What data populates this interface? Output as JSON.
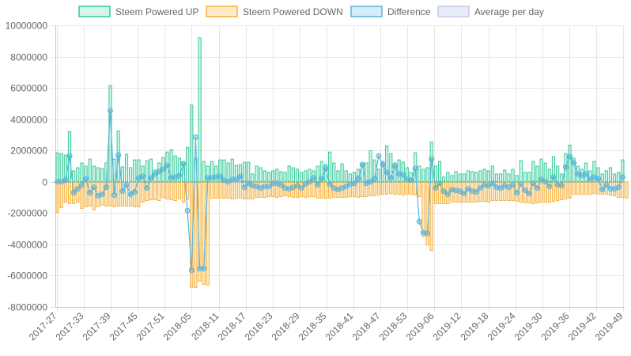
{
  "chart_data": {
    "type": "bar",
    "title": "",
    "xlabel": "",
    "ylabel": "",
    "ylim": [
      -8000000,
      10000000
    ],
    "y_ticks": [
      10000000,
      8000000,
      6000000,
      4000000,
      2000000,
      0,
      -2000000,
      -4000000,
      -6000000,
      -8000000
    ],
    "y_tick_labels": [
      "10000000",
      "8000000",
      "6000000",
      "4000000",
      "2000000",
      "0",
      "-2000000",
      "-4000000",
      "-6000000",
      "-8000000"
    ],
    "x_tick_labels": [
      "2017-27",
      "2017-33",
      "2017-39",
      "2017-45",
      "2017-51",
      "2018-05",
      "2018-11",
      "2018-17",
      "2018-23",
      "2018-29",
      "2018-35",
      "2018-41",
      "2018-47",
      "2018-53",
      "2019-06",
      "2019-12",
      "2019-18",
      "2019-24",
      "2019-30",
      "2019-36",
      "2019-42",
      "2019-49"
    ],
    "grid": true,
    "legend_position": "top",
    "legend": [
      {
        "name": "Steem Powered UP",
        "color": "#4bd4a0"
      },
      {
        "name": "Steem Powered DOWN",
        "color": "#ffc45c"
      },
      {
        "name": "Difference",
        "color": "#5ab4dc"
      },
      {
        "name": "Average per day",
        "color": "#cdd6f2"
      }
    ],
    "colors": {
      "up_fill": "rgba(75,220,170,0.25)",
      "up_stroke": "#38c99b",
      "down_fill": "rgba(255,196,92,0.35)",
      "down_stroke": "#f5b03e",
      "diff_line": "#5ab4dc",
      "diff_point": "rgba(90,180,220,0.45)",
      "avg_fill": "#e8ebf8",
      "avg_stroke": "#c4cbeb"
    },
    "series": [
      {
        "name": "Steem Powered UP",
        "values": [
          1850000,
          1800000,
          1700000,
          3200000,
          700000,
          900000,
          1200000,
          1000000,
          1450000,
          1000000,
          900000,
          850000,
          1200000,
          6150000,
          1450000,
          3250000,
          950000,
          1750000,
          900000,
          1400000,
          1400000,
          1000000,
          1350000,
          1450000,
          750000,
          1200000,
          1550000,
          1900000,
          2050000,
          1650000,
          1500000,
          1300000,
          2200000,
          4900000,
          1500000,
          9200000,
          1300000,
          1000000,
          1300000,
          1000000,
          1400000,
          1400000,
          1200000,
          1450000,
          1050000,
          1100000,
          1250000,
          1250000,
          500000,
          1000000,
          900000,
          700000,
          600000,
          700000,
          800000,
          650000,
          600000,
          1000000,
          900000,
          800000,
          600000,
          700000,
          800000,
          700000,
          1000000,
          1300000,
          1100000,
          1900000,
          1200000,
          700000,
          1150000,
          700000,
          500000,
          600000,
          800000,
          1150000,
          1200000,
          2000000,
          1400000,
          800000,
          1300000,
          2300000,
          1800000,
          1200000,
          1400000,
          1250000,
          900000,
          600000,
          1850000,
          1000000,
          800000,
          900000,
          2550000,
          1000000,
          1300000,
          300000,
          600000,
          400000,
          650000,
          500000,
          500000,
          700000,
          650000,
          600000,
          700000,
          800000,
          700000,
          1000000,
          500000,
          500000,
          750000,
          500000,
          800000,
          400000,
          1350000,
          600000,
          600000,
          1300000,
          1000000,
          1450000,
          1200000,
          800000,
          1600000,
          1000000,
          500000,
          1800000,
          2350000,
          1500000,
          1000000,
          800000,
          1200000,
          700000,
          1300000,
          900000,
          500000,
          700000,
          900000,
          500000,
          600000,
          1400000
        ]
      },
      {
        "name": "Steem Powered DOWN",
        "values": [
          -1950000,
          -1650000,
          -1300000,
          -1400000,
          -1400000,
          -1300000,
          -1700000,
          -1600000,
          -1550000,
          -1800000,
          -1600000,
          -1500000,
          -1550000,
          -1550000,
          -1600000,
          -1550000,
          -1550000,
          -1550000,
          -1550000,
          -1600000,
          -1600000,
          -1300000,
          -1200000,
          -1150000,
          -1150000,
          -1200000,
          -1000000,
          -1100000,
          -1150000,
          -1200000,
          -1100000,
          -1300000,
          -1100000,
          -6750000,
          -6750000,
          -6350000,
          -6550000,
          -6600000,
          -1050000,
          -1050000,
          -1050000,
          -1050000,
          -1050000,
          -1100000,
          -1050000,
          -1050000,
          -1100000,
          -1100000,
          -1100000,
          -1000000,
          -1000000,
          -1000000,
          -950000,
          -950000,
          -1000000,
          -950000,
          -900000,
          -950000,
          -1000000,
          -1000000,
          -950000,
          -1000000,
          -950000,
          -950000,
          -1050000,
          -1050000,
          -1050000,
          -1050000,
          -1000000,
          -1000000,
          -1000000,
          -1000000,
          -950000,
          -950000,
          -1000000,
          -950000,
          -950000,
          -900000,
          -900000,
          -850000,
          -800000,
          -800000,
          -750000,
          -800000,
          -800000,
          -850000,
          -800000,
          -800000,
          -850000,
          -950000,
          -3500000,
          -4050000,
          -4400000,
          -1400000,
          -1400000,
          -1400000,
          -1400000,
          -1300000,
          -1300000,
          -1300000,
          -1300000,
          -1300000,
          -1300000,
          -1300000,
          -1250000,
          -1250000,
          -1300000,
          -1200000,
          -1200000,
          -1200000,
          -1200000,
          -1200000,
          -1200000,
          -1250000,
          -1300000,
          -1350000,
          -1350000,
          -1400000,
          -1350000,
          -1300000,
          -1300000,
          -1300000,
          -1250000,
          -1200000,
          -1150000,
          -1100000,
          -1050000,
          -800000,
          -800000,
          -800000,
          -800000,
          -800000,
          -750000,
          -800000,
          -800000,
          -800000,
          -850000,
          -900000,
          -1000000,
          -1000000,
          -1050000
        ]
      },
      {
        "name": "Difference",
        "values": [
          0,
          0,
          100000,
          1650000,
          -700000,
          -450000,
          -200000,
          200000,
          -700000,
          -350000,
          -900000,
          -800000,
          -350000,
          4550000,
          -850000,
          1700000,
          -600000,
          -200000,
          -800000,
          -650000,
          250000,
          350000,
          -400000,
          250000,
          500000,
          650000,
          800000,
          1050000,
          250000,
          300000,
          400000,
          1150000,
          -1850000,
          -5650000,
          2850000,
          -5550000,
          -5550000,
          250000,
          250000,
          300000,
          350000,
          100000,
          0,
          150000,
          150000,
          350000,
          -350000,
          -100000,
          -250000,
          -300000,
          -400000,
          -300000,
          -300000,
          -100000,
          -100000,
          -200000,
          -400000,
          -450000,
          -350000,
          -250000,
          -400000,
          -150000,
          0,
          250000,
          -200000,
          200000,
          850000,
          -150000,
          -400000,
          -500000,
          -400000,
          -300000,
          -150000,
          -100000,
          200000,
          1100000,
          -100000,
          0,
          200000,
          1650000,
          1100000,
          600000,
          250000,
          1000000,
          500000,
          450000,
          150000,
          100000,
          850000,
          -2550000,
          -3250000,
          -3300000,
          1450000,
          -400000,
          -100000,
          -600000,
          -800000,
          -500000,
          -550000,
          -600000,
          -750000,
          -450000,
          -600000,
          -650000,
          -400000,
          -200000,
          -250000,
          -100000,
          -350000,
          -400000,
          -250000,
          -350000,
          -200000,
          -700000,
          -150000,
          -550000,
          -750000,
          -100000,
          -400000,
          150000,
          0,
          -300000,
          300000,
          -200000,
          -250000,
          950000,
          1600000,
          1200000,
          500000,
          400000,
          500000,
          150000,
          300000,
          200000,
          -500000,
          -200000,
          -450000,
          -450000,
          -350000,
          300000
        ]
      }
    ]
  }
}
